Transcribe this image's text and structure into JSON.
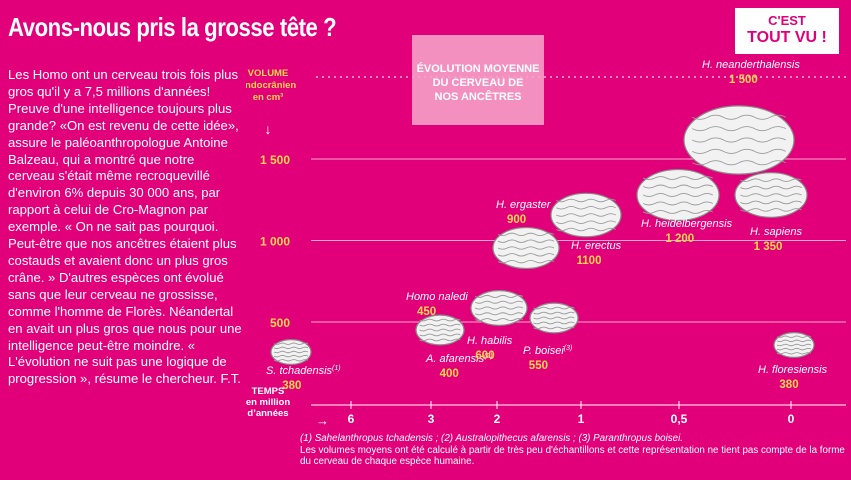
{
  "header": {
    "title": "Avons-nous pris la grosse tête ?",
    "badge_line1": "C'EST",
    "badge_line2": "TOUT VU !"
  },
  "article": {
    "text": "Les Homo ont un cerveau trois fois plus gros qu'il y a 7,5 millions d'années! Preuve d'une intelligence toujours plus grande? «On est revenu de cette idée», assure le paléoanthropologue Antoine Balzeau, qui a montré que notre cerveau s'était même recroquevillé d'environ 6% depuis 30 000 ans, par rapport à celui de Cro-Magnon par exemple. « On ne sait pas pourquoi. Peut-être que nos ancêtres étaient plus costauds et avaient donc un plus gros crâne. » D'autres espèces ont évolué sans que leur cerveau ne grossisse, comme l'homme de Florès. Néandertal en avait un plus gros que nous pour une intelligence peut-être moindre. « L'évolution ne suit pas une logique de progression », résume le chercheur.",
    "signature": "F.T."
  },
  "colors": {
    "background": "#e2007a",
    "value_label": "#ffd84a",
    "axis_text": "#ffffff",
    "brain_fill": "#f2f2f2",
    "brain_stroke": "#8a8a8a"
  },
  "chart_data": {
    "type": "scatter",
    "title": "ÉVOLUTION MOYENNE DU CERVEAU DE NOS ANCÊTRES",
    "ylabel": "VOLUME endocrânien en cm³",
    "xlabel": "TEMPS en million d'années",
    "yticks": [
      "1 500",
      "1 000",
      "500"
    ],
    "ytick_values": [
      1500,
      1000,
      500
    ],
    "xticks": [
      "6",
      "3",
      "2",
      "1",
      "0,5",
      "0"
    ],
    "ylim": [
      0,
      1700
    ],
    "marker": "brain-icon",
    "points": [
      {
        "name": "S. tchadensis",
        "sup": "(1)",
        "x": "6",
        "y": 380,
        "label": "380",
        "label_pos": "below"
      },
      {
        "name": "A. afarensis",
        "sup": "(2)",
        "x": "3",
        "y": 400,
        "label": "400",
        "label_pos": "below"
      },
      {
        "name": "Homo naledi",
        "sup": "",
        "x": "3",
        "y": 450,
        "label": "450",
        "label_pos": "above"
      },
      {
        "name": "H. habilis",
        "sup": "",
        "x": "2",
        "y": 600,
        "label": "600",
        "label_pos": "below"
      },
      {
        "name": "P. boisei",
        "sup": "(3)",
        "x": "1,8",
        "y": 550,
        "label": "550",
        "label_pos": "below"
      },
      {
        "name": "H. ergaster",
        "sup": "",
        "x": "1,7",
        "y": 900,
        "label": "900",
        "label_pos": "above"
      },
      {
        "name": "H. erectus",
        "sup": "",
        "x": "1,2",
        "y": 1100,
        "label": "1100",
        "label_pos": "below"
      },
      {
        "name": "H. heidelbergensis",
        "sup": "",
        "x": "0,5",
        "y": 1200,
        "label": "1 200",
        "label_pos": "below"
      },
      {
        "name": "H. sapiens",
        "sup": "",
        "x": "0",
        "y": 1350,
        "label": "1 350",
        "label_pos": "below"
      },
      {
        "name": "H. neanderthalensis",
        "sup": "",
        "x": "0,1",
        "y": 1500,
        "label": "1 500",
        "label_pos": "above"
      },
      {
        "name": "H. floresiensis",
        "sup": "",
        "x": "0",
        "y": 380,
        "label": "380",
        "label_pos": "below"
      }
    ]
  },
  "footnote": {
    "line1": "(1) Sahelanthropus tchadensis ; (2) Australopithecus afarensis ; (3) Paranthropus boisei.",
    "line2": "Les volumes moyens ont été calculé à partir de très peu d'échantillons et cette représentation ne tient pas compte de la forme du cerveau de chaque espèce humaine."
  }
}
